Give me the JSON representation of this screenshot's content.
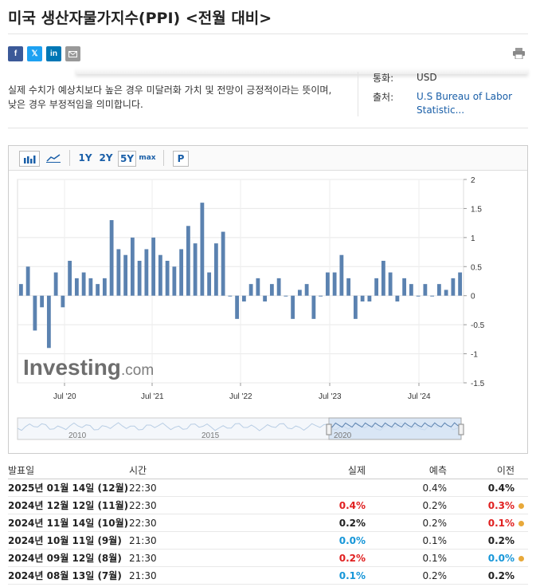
{
  "page": {
    "title": "미국 생산자물가지수(PPI) <전월 대비>",
    "description": "실제 수치가 예상치보다 높은 경우 미달러화 가치 및 전망이 긍정적이라는 뜻이며, 낮은 경우 부정적임을 의미합니다.",
    "currency_label": "통화:",
    "currency_value": "USD",
    "source_label": "출처:",
    "source_value": "U.S Bureau of Labor Statistic..."
  },
  "share": {
    "facebook": "f",
    "twitter": "𝕏",
    "linkedin": "in",
    "email_icon": "email-icon",
    "print_icon": "print-icon"
  },
  "toolbar": {
    "bar_icon": "bar-chart-icon",
    "line_icon": "line-chart-icon",
    "r1": "1Y",
    "r2": "2Y",
    "r5": "5Y",
    "rmax": "max",
    "p": "P"
  },
  "watermark": {
    "brand": "Investing",
    "suffix": ".com"
  },
  "colors": {
    "bar": "#5b82b0",
    "up": "#e02020",
    "down": "#1696d8",
    "dot": "#e8a93a",
    "link": "#1a5fa8"
  },
  "chart_data": {
    "type": "bar",
    "x_tick_labels": [
      "Jul '20",
      "Jul '21",
      "Jul '22",
      "Jul '23",
      "Jul '24"
    ],
    "y_ticks": [
      2,
      1.5,
      1,
      0.5,
      0,
      -0.5,
      -1,
      -1.5
    ],
    "ylim": [
      -1.5,
      2
    ],
    "values": [
      0.2,
      0.5,
      -0.6,
      -0.2,
      -0.9,
      0.4,
      -0.2,
      0.6,
      0.3,
      0.4,
      0.3,
      0.2,
      0.3,
      1.3,
      0.8,
      0.7,
      1.0,
      0.6,
      0.8,
      1.0,
      0.7,
      0.6,
      0.5,
      0.8,
      1.2,
      0.9,
      1.6,
      0.4,
      0.9,
      1.1,
      0.0,
      -0.4,
      -0.1,
      0.2,
      0.3,
      -0.1,
      0.2,
      0.3,
      0.0,
      -0.4,
      0.1,
      0.2,
      -0.4,
      0.0,
      0.4,
      0.4,
      0.7,
      0.3,
      -0.4,
      -0.1,
      -0.1,
      0.3,
      0.6,
      0.4,
      -0.1,
      0.3,
      0.2,
      0.0,
      0.2,
      0.0,
      0.2,
      0.1,
      0.3,
      0.4
    ],
    "navigator_labels": [
      "2010",
      "2015",
      "2020"
    ],
    "grid": true
  },
  "table": {
    "headers": [
      "발표일",
      "시간",
      "실제",
      "예측",
      "이전"
    ],
    "rows": [
      {
        "date": "2025년 01월 14일 (12월)",
        "time": "22:30",
        "actual": "",
        "forecast": "0.4%",
        "previous": "0.4%",
        "actual_color": "dark",
        "prev_color": "dark",
        "dot": false
      },
      {
        "date": "2024년 12월 12일 (11월)",
        "time": "22:30",
        "actual": "0.4%",
        "forecast": "0.2%",
        "previous": "0.3%",
        "actual_color": "red",
        "prev_color": "red",
        "dot": true
      },
      {
        "date": "2024년 11월 14일 (10월)",
        "time": "22:30",
        "actual": "0.2%",
        "forecast": "0.2%",
        "previous": "0.1%",
        "actual_color": "dark",
        "prev_color": "red",
        "dot": true
      },
      {
        "date": "2024년 10월 11일 (9월)",
        "time": "21:30",
        "actual": "0.0%",
        "forecast": "0.1%",
        "previous": "0.2%",
        "actual_color": "blue",
        "prev_color": "dark",
        "dot": false
      },
      {
        "date": "2024년 09월 12일 (8월)",
        "time": "21:30",
        "actual": "0.2%",
        "forecast": "0.1%",
        "previous": "0.0%",
        "actual_color": "red",
        "prev_color": "blue",
        "dot": true
      },
      {
        "date": "2024년 08월 13일 (7월)",
        "time": "21:30",
        "actual": "0.1%",
        "forecast": "0.2%",
        "previous": "0.2%",
        "actual_color": "blue",
        "prev_color": "dark",
        "dot": false
      }
    ]
  }
}
